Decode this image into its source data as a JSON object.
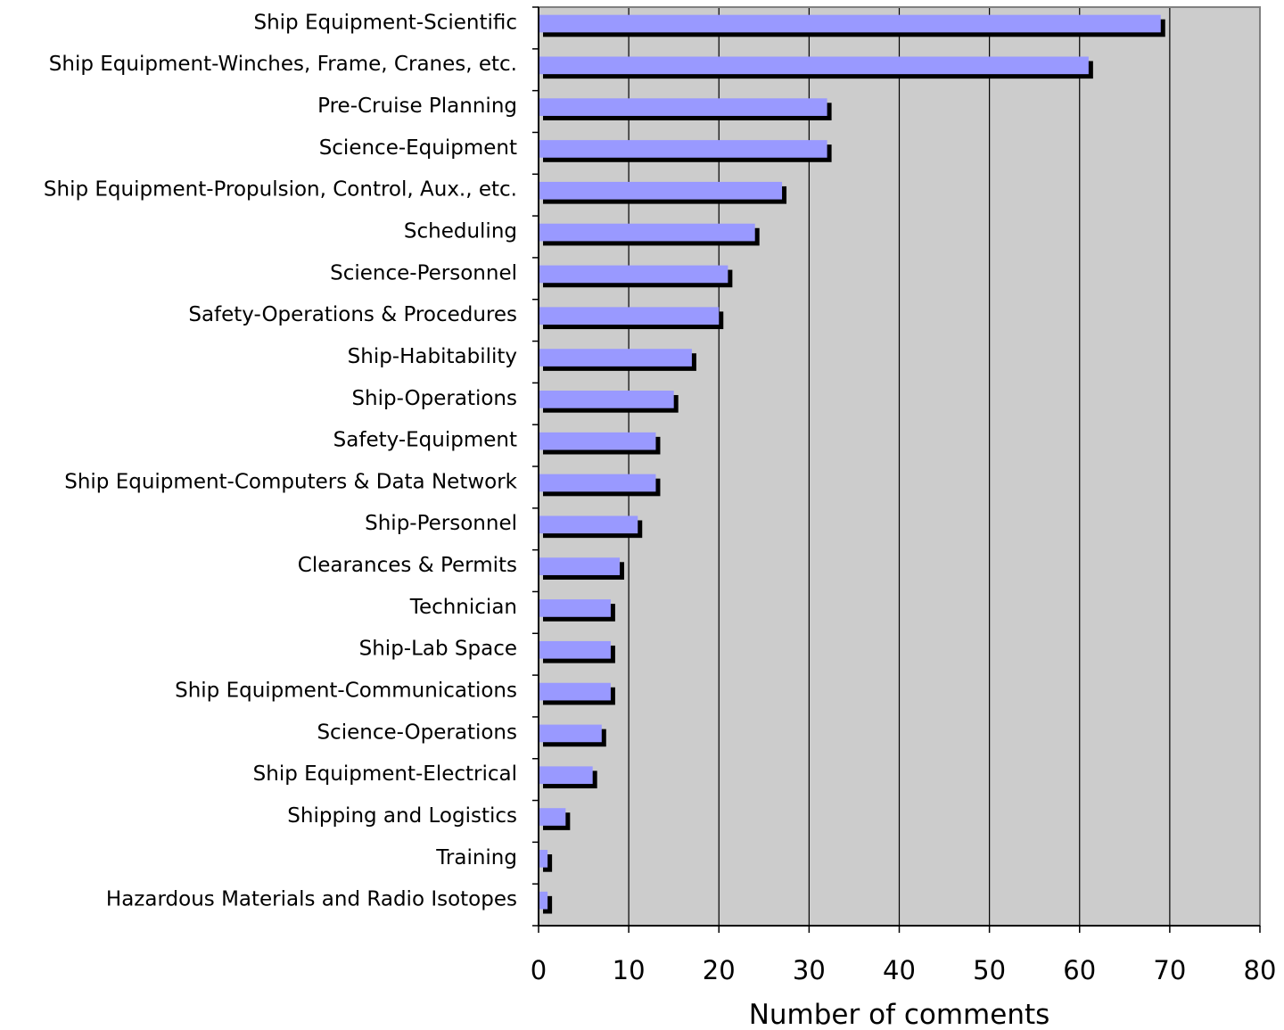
{
  "chart_data": {
    "type": "bar",
    "orientation": "horizontal",
    "title": "",
    "xlabel": "Number of comments",
    "ylabel": "",
    "xlim": [
      0,
      80
    ],
    "xticks": [
      0,
      10,
      20,
      30,
      40,
      50,
      60,
      70,
      80
    ],
    "grid": "vertical major gridlines",
    "legend": "none",
    "categories": [
      "Ship Equipment-Scientific",
      "Ship Equipment-Winches, Frame, Cranes, etc.",
      "Pre-Cruise Planning",
      "Science-Equipment",
      "Ship Equipment-Propulsion, Control, Aux., etc.",
      "Scheduling",
      "Science-Personnel",
      "Safety-Operations & Procedures",
      "Ship-Habitability",
      "Ship-Operations",
      "Safety-Equipment",
      "Ship Equipment-Computers & Data Network",
      "Ship-Personnel",
      "Clearances & Permits",
      "Technician",
      "Ship-Lab Space",
      "Ship Equipment-Communications",
      "Science-Operations",
      "Ship Equipment-Electrical",
      "Shipping and Logistics",
      "Training",
      "Hazardous Materials and Radio Isotopes"
    ],
    "values": [
      69,
      61,
      32,
      32,
      27,
      24,
      21,
      20,
      17,
      15,
      13,
      13,
      11,
      9,
      8,
      8,
      8,
      7,
      6,
      3,
      1,
      1
    ],
    "colors": {
      "bar": "#9999ff",
      "bar_shadow": "#000000",
      "plot_background": "#cccccc",
      "gridline": "#000000",
      "axis": "#000000"
    }
  }
}
